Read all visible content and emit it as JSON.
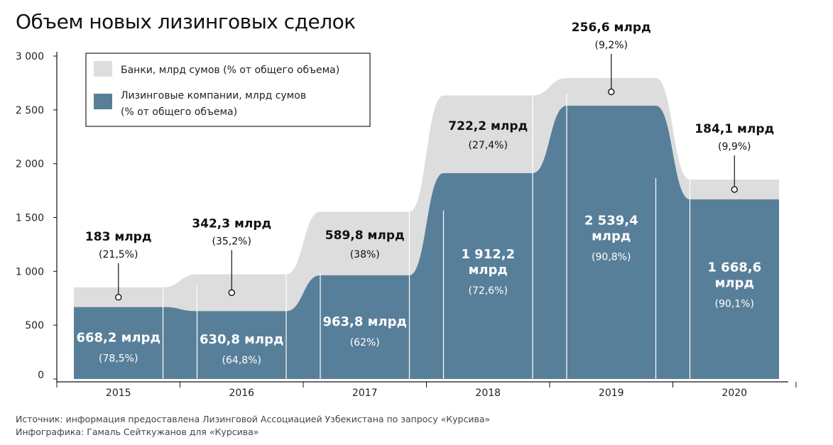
{
  "title": "Объем новых лизинговых сделок",
  "footer": {
    "source": "Источник: информация предоставлена Лизинговой Ассоциацией Узбекистана по запросу «Курсива»",
    "credit": "Инфографика: Гамаль Сейткужанов для «Курсива»"
  },
  "colors": {
    "banks": "#dddddd",
    "leasing": "#587f99",
    "axis": "#111111"
  },
  "chart_data": {
    "type": "bar",
    "stacked": true,
    "title": "Объем новых лизинговых сделок",
    "xlabel": "",
    "ylabel": "",
    "ylim": [
      0,
      3000
    ],
    "yticks": [
      0,
      500,
      1000,
      1500,
      2000,
      2500,
      3000
    ],
    "ytick_labels": [
      "0",
      "500",
      "1 000",
      "1 500",
      "2 000",
      "2 500",
      "3 000"
    ],
    "grid": false,
    "legend_position": "top-left",
    "categories": [
      "2015",
      "2016",
      "2017",
      "2018",
      "2019",
      "2020"
    ],
    "series": [
      {
        "name": "Лизинговые компании, млрд сумов (% от общего объема)",
        "key": "leasing",
        "values": [
          668.2,
          630.8,
          963.8,
          1912.2,
          2539.4,
          1668.6
        ],
        "labels": [
          "668,2 млрд",
          "630,8 млрд",
          "963,8 млрд",
          "1 912,2 млрд",
          "2 539,4 млрд",
          "1 668,6 млрд"
        ],
        "pct_labels": [
          "(78,5%)",
          "(64,8%)",
          "(62%)",
          "(72,6%)",
          "(90,8%)",
          "(90,1%)"
        ]
      },
      {
        "name": "Банки, млрд сумов (% от общего объема)",
        "key": "banks",
        "values": [
          183,
          342.3,
          589.8,
          722.2,
          256.6,
          184.1
        ],
        "labels": [
          "183 млрд",
          "342,3 млрд",
          "589,8 млрд",
          "722,2 млрд",
          "256,6 млрд",
          "184,1 млрд"
        ],
        "pct_labels": [
          "(21,5%)",
          "(35,2%)",
          "(38%)",
          "(27,4%)",
          "(9,2%)",
          "(9,9%)"
        ]
      }
    ]
  }
}
